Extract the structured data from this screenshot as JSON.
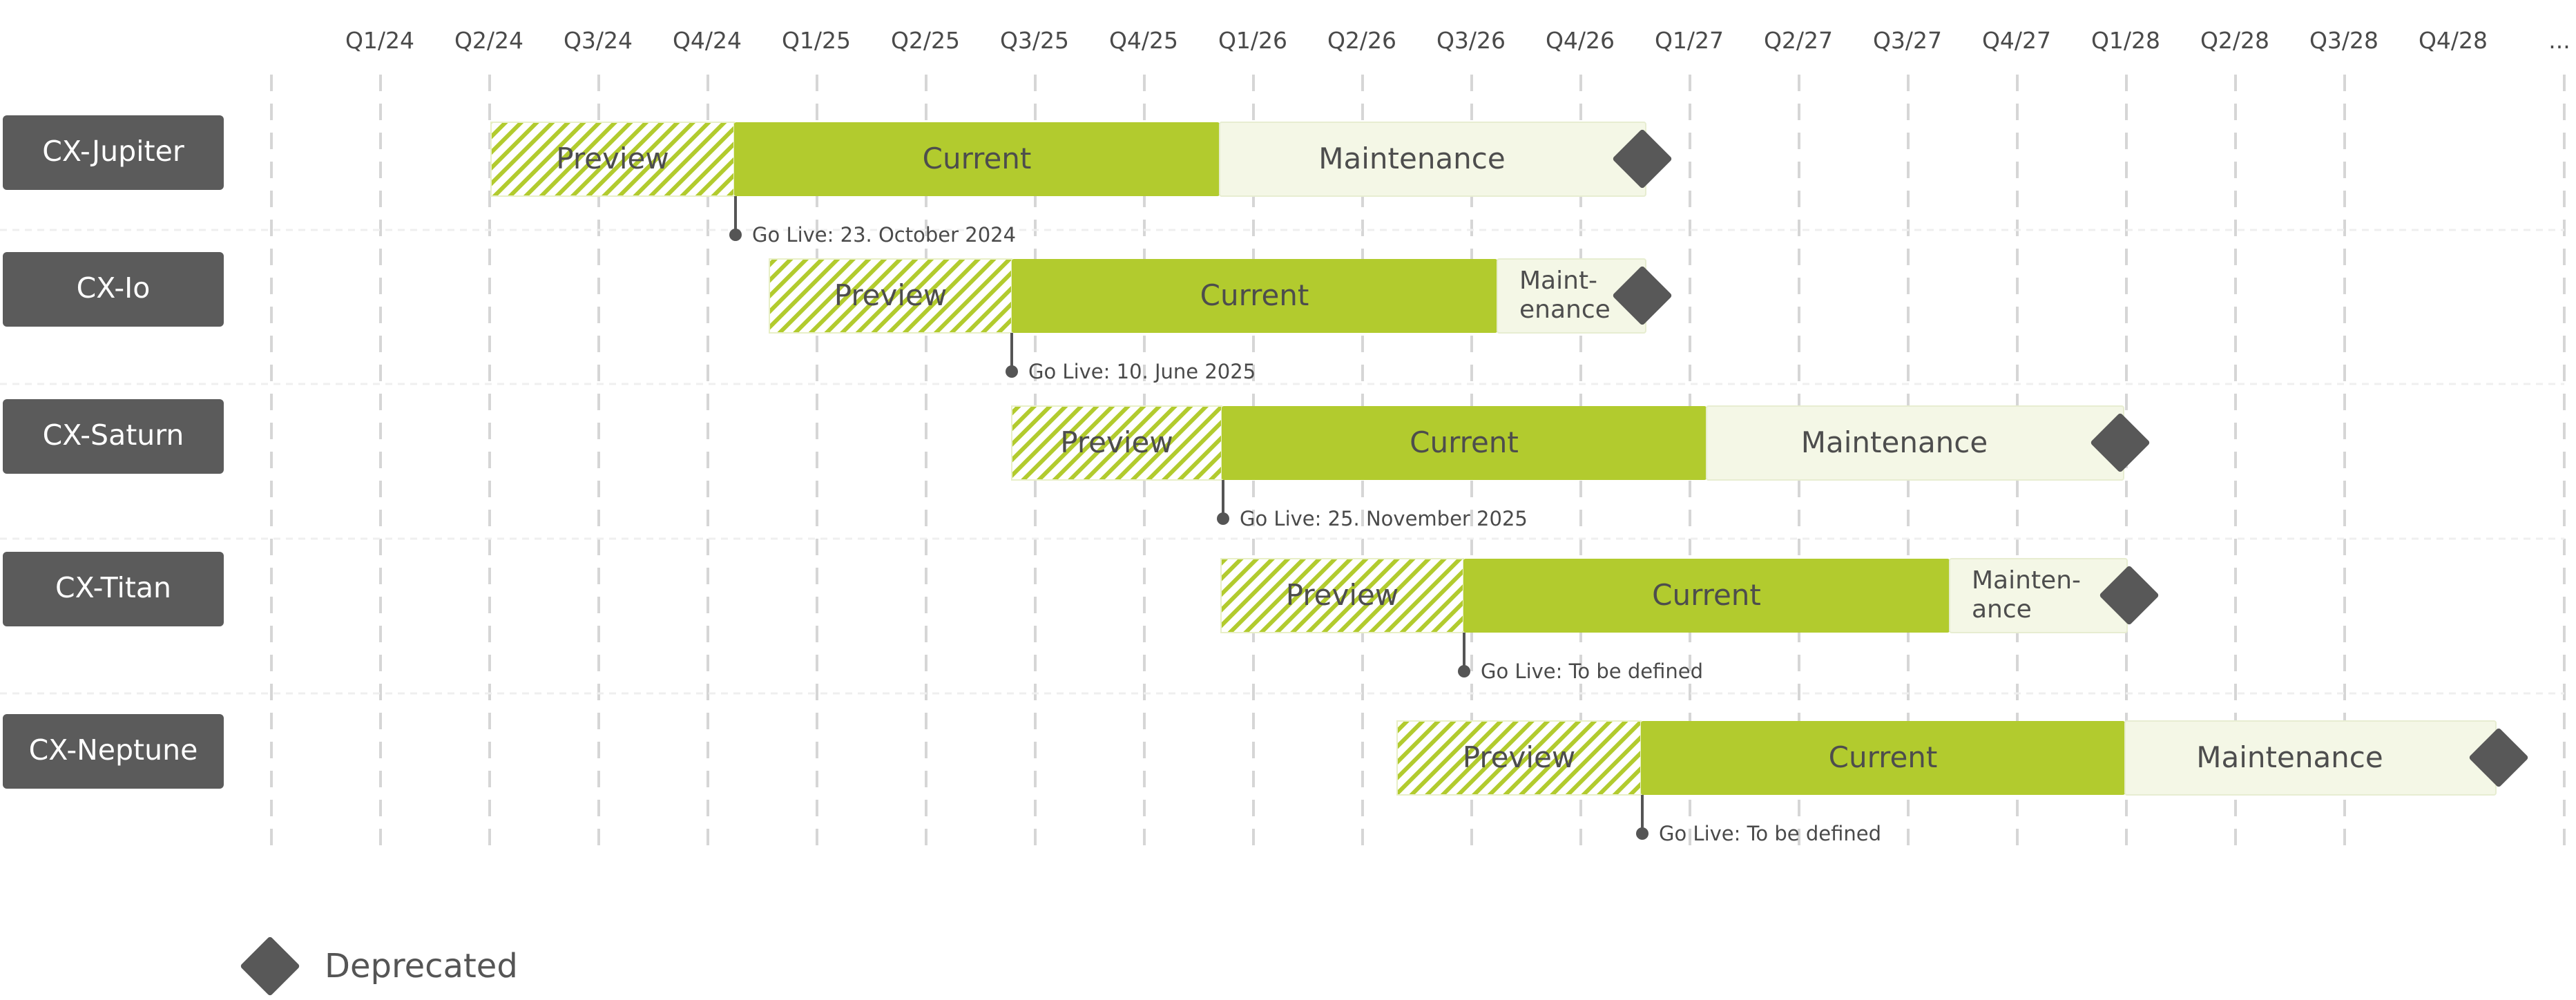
{
  "timeline": {
    "quarters": [
      "Q1/24",
      "Q2/24",
      "Q3/24",
      "Q4/24",
      "Q1/25",
      "Q2/25",
      "Q3/25",
      "Q4/25",
      "Q1/26",
      "Q2/26",
      "Q3/26",
      "Q4/26",
      "Q1/27",
      "Q2/27",
      "Q3/27",
      "Q4/27",
      "Q1/28",
      "Q2/28",
      "Q3/28",
      "Q4/28"
    ],
    "overflow_label": "..."
  },
  "products": [
    {
      "name": "CX-Jupiter",
      "preview_label": "Preview",
      "current_label": "Current",
      "maintenance_label": "Maintenance",
      "go_live_label": "Go Live: 23. October 2024"
    },
    {
      "name": "CX-Io",
      "preview_label": "Preview",
      "current_label": "Current",
      "maintenance_label": [
        "Maint-",
        "enance"
      ],
      "go_live_label": "Go Live: 10. June 2025"
    },
    {
      "name": "CX-Saturn",
      "preview_label": "Preview",
      "current_label": "Current",
      "maintenance_label": "Maintenance",
      "go_live_label": "Go Live: 25. November 2025"
    },
    {
      "name": "CX-Titan",
      "preview_label": "Preview",
      "current_label": "Current",
      "maintenance_label": [
        "Mainten-",
        "ance"
      ],
      "go_live_label": "Go Live: To be defined"
    },
    {
      "name": "CX-Neptune",
      "preview_label": "Preview",
      "current_label": "Current",
      "maintenance_label": "Maintenance",
      "go_live_label": "Go Live: To be defined"
    }
  ],
  "legend": {
    "deprecated_label": "Deprecated",
    "deprecated_icon": "diamond-icon"
  },
  "colors": {
    "current": "#b2cb2e",
    "preview_hatch": "#b2cb2e",
    "maintenance": "#f4f7e6",
    "deprecated_marker": "#585858",
    "row_label_bg": "#5b5b5b"
  }
}
